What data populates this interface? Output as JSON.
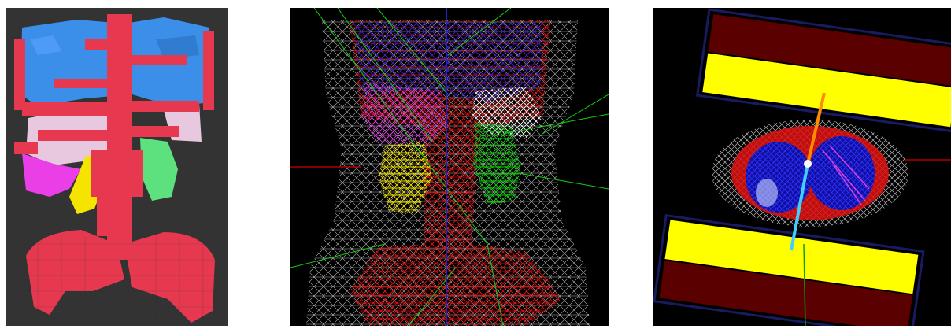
{
  "figure": {
    "panels": [
      {
        "id": "voxel-render",
        "background": "#333333"
      },
      {
        "id": "wireframe-render",
        "background": "#000000"
      },
      {
        "id": "pet-ring-render",
        "background": "#000000"
      }
    ]
  },
  "colors": {
    "lungs_vessels": "#e63950",
    "liver_top": "#3b8fe8",
    "magenta": "#ea3ee6",
    "pale_pink": "#e8c8de",
    "yellow": "#f4e400",
    "green": "#5de07e",
    "wire_gray": "#b8b8b8",
    "wire_red": "#e01010",
    "wire_blue": "#2020d0",
    "wire_green": "#10d010",
    "detector_dark": "#5a0000",
    "detector_yellow": "#ffff00",
    "detector_frame": "#1a1a60",
    "line_orange": "#ff8c00",
    "line_cyan": "#40d0ff"
  }
}
